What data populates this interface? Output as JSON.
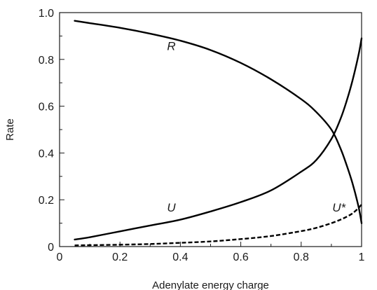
{
  "chart_data": {
    "type": "line",
    "xlabel": "Adenylate energy charge",
    "ylabel": "Rate",
    "xlim": [
      0,
      1
    ],
    "ylim": [
      0,
      1
    ],
    "x_ticks": [
      "0",
      "0.2",
      "0.4",
      "0.6",
      "0.8",
      "1"
    ],
    "y_ticks": [
      "0",
      "0.2",
      "0.4",
      "0.6",
      "0.8",
      "1.0"
    ],
    "grid": false,
    "legend": "none",
    "series": [
      {
        "name": "R",
        "style": "solid",
        "color": "#000000",
        "x": [
          0.05,
          0.1,
          0.2,
          0.3,
          0.4,
          0.5,
          0.6,
          0.7,
          0.8,
          0.85,
          0.9,
          0.93,
          0.95,
          0.97,
          0.99,
          1.0
        ],
        "y": [
          0.965,
          0.955,
          0.935,
          0.91,
          0.88,
          0.84,
          0.785,
          0.715,
          0.63,
          0.575,
          0.5,
          0.42,
          0.35,
          0.27,
          0.17,
          0.1
        ]
      },
      {
        "name": "U",
        "style": "solid",
        "color": "#000000",
        "x": [
          0.05,
          0.1,
          0.2,
          0.3,
          0.4,
          0.5,
          0.6,
          0.7,
          0.8,
          0.85,
          0.9,
          0.93,
          0.95,
          0.97,
          0.99,
          1.0
        ],
        "y": [
          0.03,
          0.04,
          0.065,
          0.09,
          0.115,
          0.15,
          0.19,
          0.24,
          0.32,
          0.37,
          0.46,
          0.545,
          0.62,
          0.71,
          0.82,
          0.89
        ]
      },
      {
        "name": "U*",
        "style": "dashed",
        "color": "#000000",
        "x": [
          0.05,
          0.1,
          0.2,
          0.3,
          0.4,
          0.5,
          0.6,
          0.7,
          0.8,
          0.85,
          0.9,
          0.93,
          0.95,
          0.97,
          0.99,
          1.0
        ],
        "y": [
          0.005,
          0.006,
          0.008,
          0.011,
          0.016,
          0.022,
          0.032,
          0.045,
          0.066,
          0.08,
          0.1,
          0.115,
          0.127,
          0.142,
          0.165,
          0.18
        ]
      }
    ],
    "annotations": [
      {
        "text": "R",
        "series": "R",
        "x": 0.37,
        "y": 0.84
      },
      {
        "text": "U",
        "series": "U",
        "x": 0.37,
        "y": 0.15
      },
      {
        "text": "U*",
        "series": "U*",
        "x": 0.925,
        "y": 0.15
      }
    ]
  }
}
